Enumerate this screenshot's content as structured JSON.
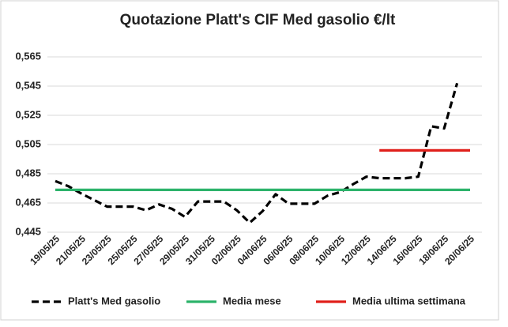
{
  "chart_data": {
    "type": "line",
    "title": "Quotazione Platt's CIF Med gasolio €/lt",
    "categories": [
      "19/05/25",
      null,
      "21/05/25",
      null,
      "23/05/25",
      null,
      "25/05/25",
      null,
      "27/05/25",
      null,
      "29/05/25",
      null,
      "31/05/25",
      null,
      "02/06/25",
      null,
      "04/06/25",
      null,
      "06/06/25",
      null,
      "08/06/25",
      null,
      "10/06/25",
      null,
      "12/06/25",
      null,
      "14/06/25",
      null,
      "16/06/25",
      null,
      "18/06/25",
      null,
      "20/06/25"
    ],
    "series": [
      {
        "name": "Platt's Med gasolio",
        "color": "#000000",
        "dash": true,
        "values": [
          0.48,
          0.4765,
          0.4715,
          0.467,
          0.4625,
          0.4625,
          0.4625,
          0.46,
          0.464,
          0.461,
          0.4555,
          0.466,
          0.466,
          0.466,
          0.46,
          0.4515,
          0.4595,
          0.471,
          0.4645,
          0.4645,
          0.4645,
          0.47,
          0.4725,
          0.478,
          0.483,
          0.482,
          0.482,
          0.482,
          0.483,
          0.5175,
          0.516,
          0.547,
          null
        ]
      },
      {
        "name": "Media mese",
        "color": "#2db36b",
        "values": [
          0.474,
          0.474,
          0.474,
          0.474,
          0.474,
          0.474,
          0.474,
          0.474,
          0.474,
          0.474,
          0.474,
          0.474,
          0.474,
          0.474,
          0.474,
          0.474,
          0.474,
          0.474,
          0.474,
          0.474,
          0.474,
          0.474,
          0.474,
          0.474,
          0.474,
          0.474,
          0.474,
          0.474,
          0.474,
          0.474,
          0.474,
          0.474,
          0.474
        ]
      },
      {
        "name": "Media ultima settimana",
        "color": "#e0201b",
        "values": [
          null,
          null,
          null,
          null,
          null,
          null,
          null,
          null,
          null,
          null,
          null,
          null,
          null,
          null,
          null,
          null,
          null,
          null,
          null,
          null,
          null,
          null,
          null,
          null,
          null,
          0.501,
          0.501,
          0.501,
          0.501,
          0.501,
          0.501,
          0.501,
          0.501
        ]
      }
    ],
    "ylim": [
      0.445,
      0.565
    ],
    "yticks": [
      {
        "value": 0.445,
        "label": "0,445"
      },
      {
        "value": 0.465,
        "label": "0,465"
      },
      {
        "value": 0.485,
        "label": "0,485"
      },
      {
        "value": 0.505,
        "label": "0,505"
      },
      {
        "value": 0.525,
        "label": "0,525"
      },
      {
        "value": 0.545,
        "label": "0,545"
      },
      {
        "value": 0.565,
        "label": "0,565"
      }
    ],
    "grid": true,
    "legend": "bottom"
  }
}
